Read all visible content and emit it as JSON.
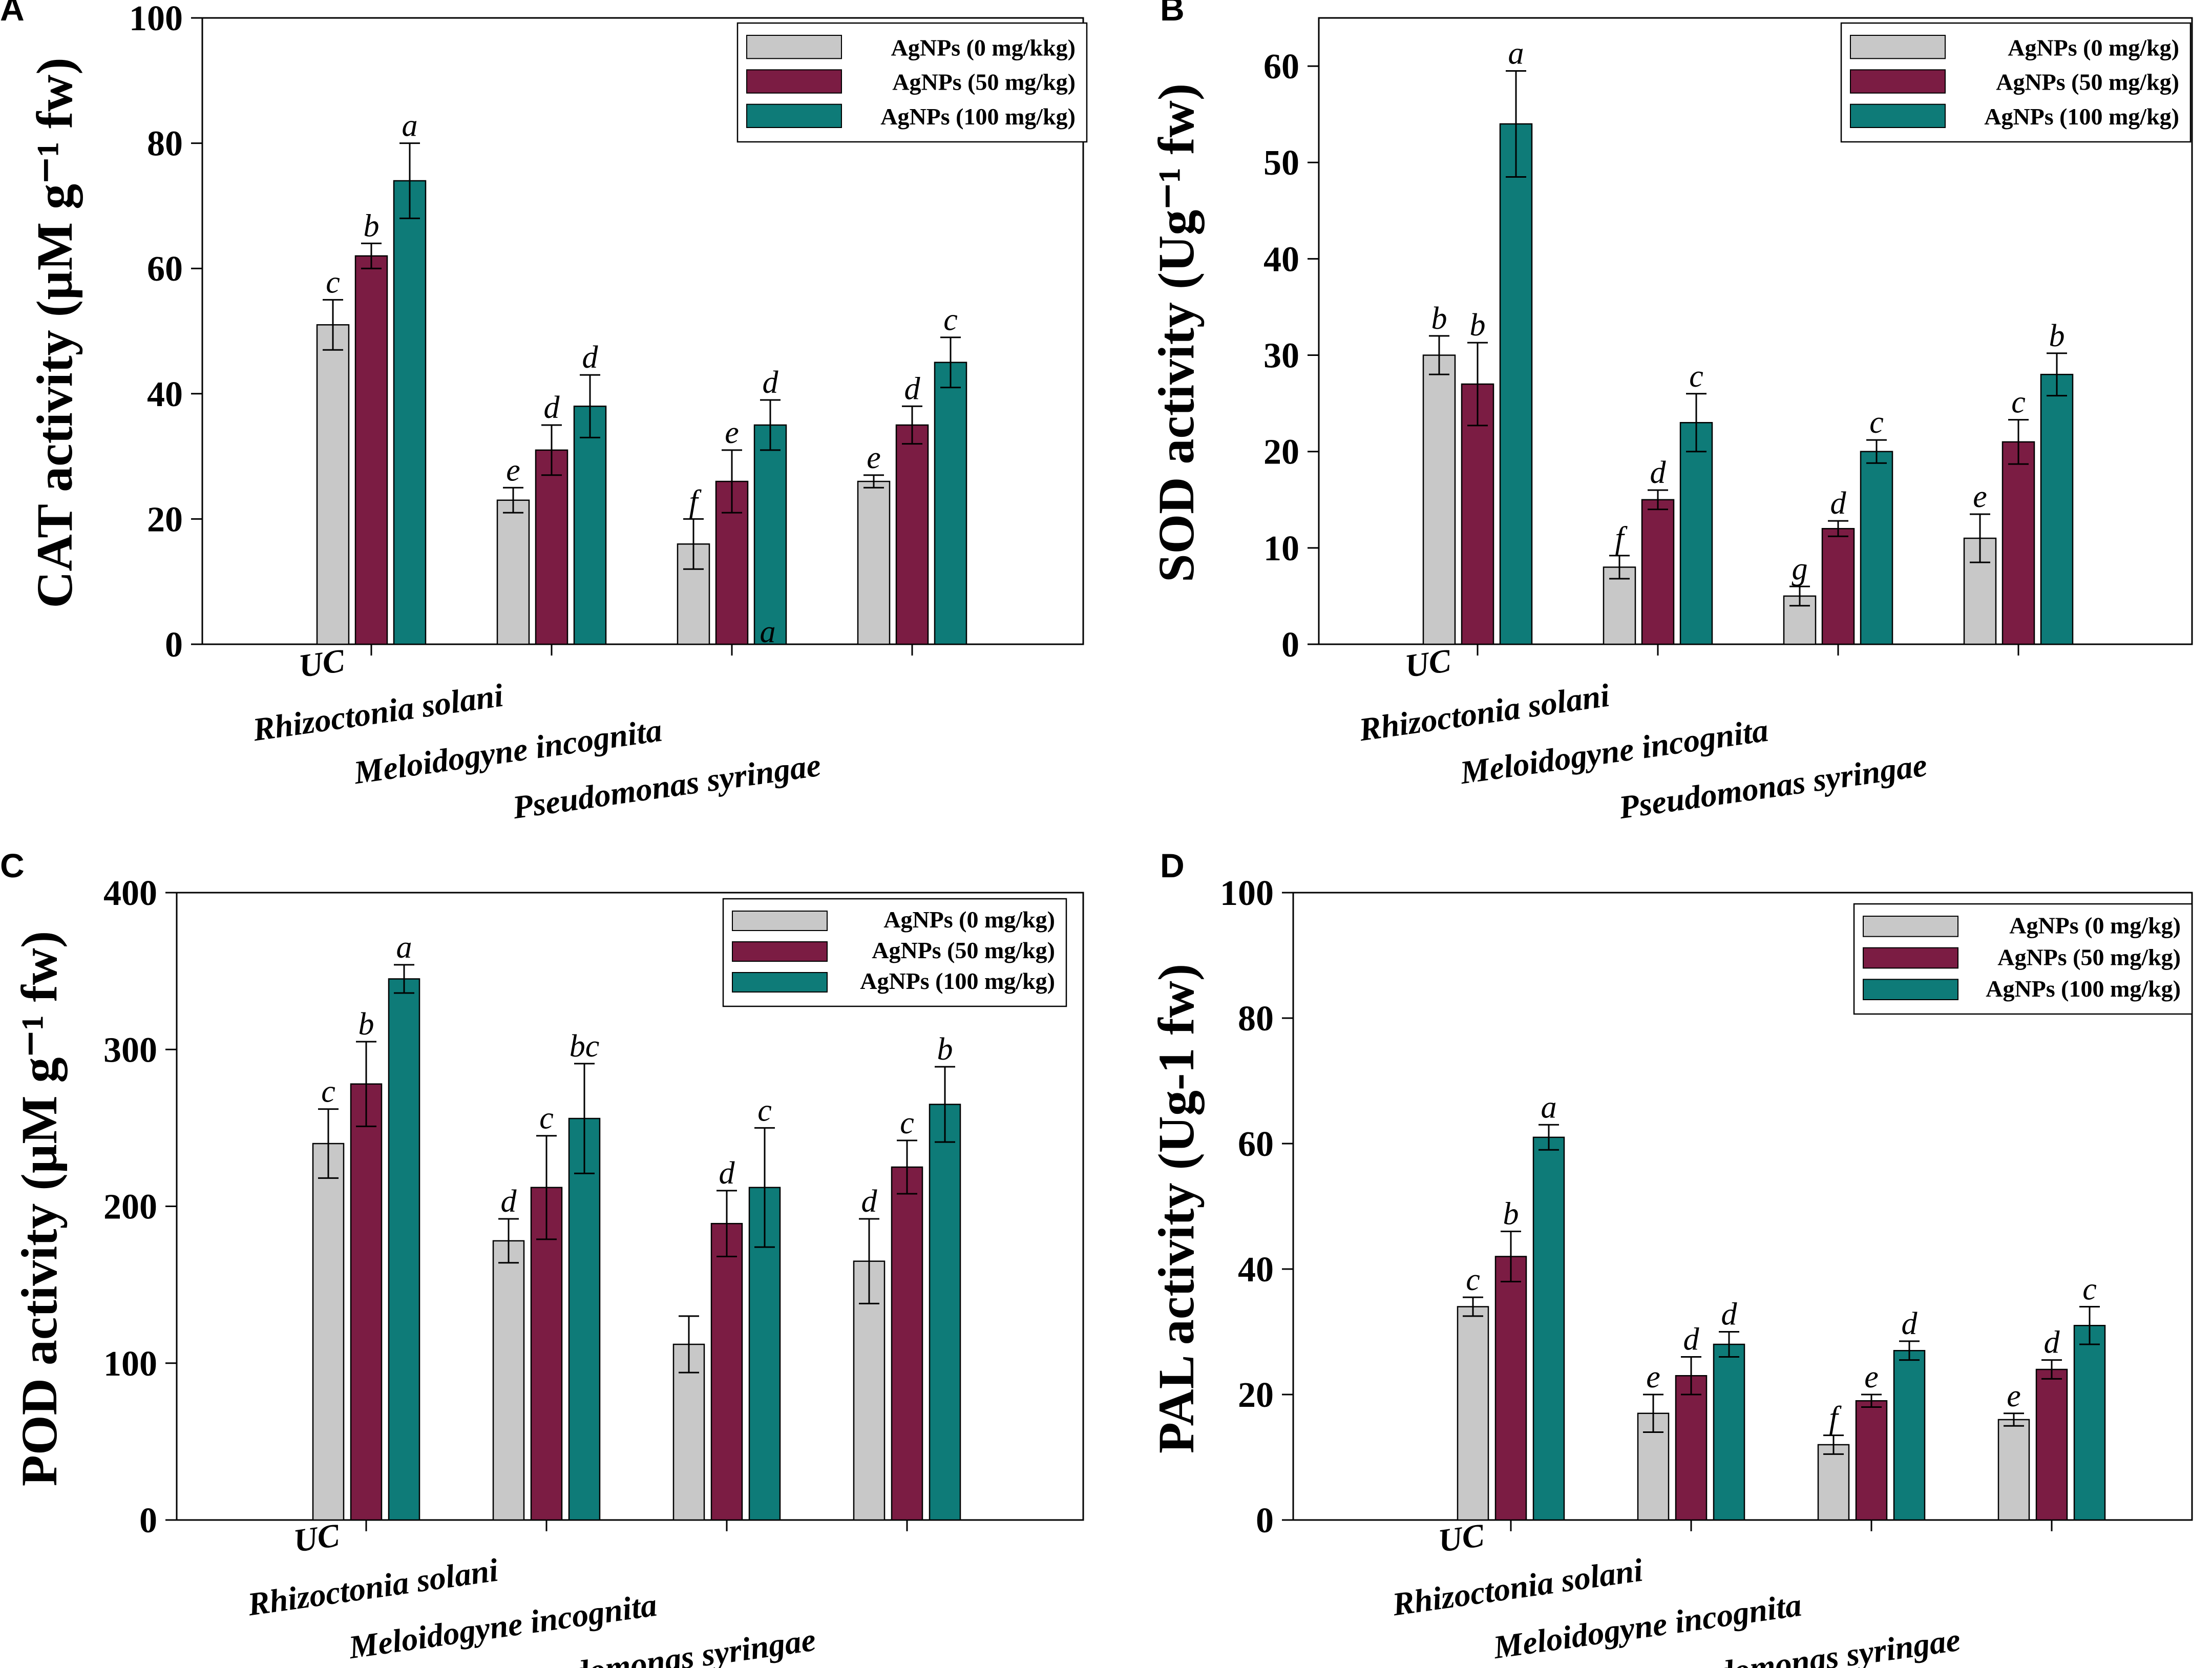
{
  "chart_data": [
    {
      "panel_label": "A",
      "type": "bar",
      "title": "",
      "xlabel": "",
      "ylabel": "CAT activity (µM g⁻¹ fw)",
      "ylim": [
        0,
        100
      ],
      "yticks": [
        0,
        20,
        40,
        60,
        80,
        100
      ],
      "categories": [
        "UC",
        "Rhizoctonia solani",
        "Meloidogyne incognita",
        "Pseudomonas syringae"
      ],
      "series": [
        {
          "name": "AgNPs (0 mg/kkg)",
          "color": "#c8c8c8",
          "values": [
            51,
            23,
            16,
            26
          ],
          "errors": [
            4,
            2,
            4,
            1
          ],
          "letters": [
            "c",
            "e",
            "f",
            "e"
          ]
        },
        {
          "name": "AgNPs (50 mg/kg)",
          "color": "#7b1c43",
          "values": [
            62,
            31,
            26,
            35
          ],
          "errors": [
            2,
            4,
            5,
            3
          ],
          "letters": [
            "b",
            "d",
            "e",
            "d"
          ]
        },
        {
          "name": "AgNPs (100 mg/kg)",
          "color": "#0e7b78",
          "values": [
            74,
            38,
            35,
            45
          ],
          "errors": [
            6,
            5,
            4,
            4
          ],
          "letters": [
            "a",
            "d",
            "d",
            "c"
          ]
        }
      ],
      "legend_position": "top-right",
      "annotations": [
        "a"
      ]
    },
    {
      "panel_label": "B",
      "type": "bar",
      "title": "",
      "xlabel": "",
      "ylabel": "SOD activity (Ug⁻¹ fw)",
      "ylim": [
        0,
        65
      ],
      "yticks": [
        0,
        10,
        20,
        30,
        40,
        50,
        60
      ],
      "categories": [
        "UC",
        "Rhizoctonia solani",
        "Meloidogyne incognita",
        "Pseudomonas syringae"
      ],
      "series": [
        {
          "name": "AgNPs (0 mg/kg)",
          "color": "#c8c8c8",
          "values": [
            30,
            8,
            5,
            11
          ],
          "errors": [
            2,
            1.2,
            1,
            2.5
          ],
          "letters": [
            "b",
            "f",
            "g",
            "e"
          ]
        },
        {
          "name": "AgNPs (50 mg/kg)",
          "color": "#7b1c43",
          "values": [
            27,
            15,
            12,
            21
          ],
          "errors": [
            4.3,
            1,
            0.8,
            2.3
          ],
          "letters": [
            "b",
            "d",
            "d",
            "c"
          ]
        },
        {
          "name": "AgNPs (100 mg/kg)",
          "color": "#0e7b78",
          "values": [
            54,
            23,
            20,
            28
          ],
          "errors": [
            5.5,
            3,
            1.2,
            2.2
          ],
          "letters": [
            "a",
            "c",
            "c",
            "b"
          ]
        }
      ],
      "legend_position": "top-right",
      "annotations": []
    },
    {
      "panel_label": "C",
      "type": "bar",
      "title": "",
      "xlabel": "",
      "ylabel": "POD activity (µM g⁻¹ fw)",
      "ylim": [
        0,
        400
      ],
      "yticks": [
        0,
        100,
        200,
        300,
        400
      ],
      "categories": [
        "UC",
        "Rhizoctonia solani",
        "Meloidogyne incognita",
        "Pseudomonas syringae"
      ],
      "series": [
        {
          "name": "AgNPs (0 mg/kg)",
          "color": "#c8c8c8",
          "values": [
            240,
            178,
            112,
            165
          ],
          "errors": [
            22,
            14,
            18,
            27
          ],
          "letters": [
            "c",
            "d",
            "",
            "d"
          ]
        },
        {
          "name": "AgNPs (50 mg/kg)",
          "color": "#7b1c43",
          "values": [
            278,
            212,
            189,
            225
          ],
          "errors": [
            27,
            33,
            21,
            17
          ],
          "letters": [
            "b",
            "c",
            "d",
            "c"
          ]
        },
        {
          "name": "AgNPs (100 mg/kg)",
          "color": "#0e7b78",
          "values": [
            345,
            256,
            212,
            265
          ],
          "errors": [
            9,
            35,
            38,
            24
          ],
          "letters": [
            "a",
            "bc",
            "c",
            "b"
          ]
        }
      ],
      "legend_position": "top-right",
      "annotations": []
    },
    {
      "panel_label": "D",
      "type": "bar",
      "title": "",
      "xlabel": "",
      "ylabel": "PAL activity (Ug-1 fw)",
      "ylim": [
        0,
        100
      ],
      "yticks": [
        0,
        20,
        40,
        60,
        80,
        100
      ],
      "categories": [
        "UC",
        "Rhizoctonia solani",
        "Meloidogyne incognita",
        "Pseudomonas syringae"
      ],
      "series": [
        {
          "name": "AgNPs (0 mg/kg)",
          "color": "#c8c8c8",
          "values": [
            34,
            17,
            12,
            16
          ],
          "errors": [
            1.5,
            3,
            1.5,
            1
          ],
          "letters": [
            "c",
            "e",
            "f",
            "e"
          ]
        },
        {
          "name": "AgNPs (50 mg/kg)",
          "color": "#7b1c43",
          "values": [
            42,
            23,
            19,
            24
          ],
          "errors": [
            4,
            3,
            1,
            1.5
          ],
          "letters": [
            "b",
            "d",
            "e",
            "d"
          ]
        },
        {
          "name": "AgNPs (100 mg/kg)",
          "color": "#0e7b78",
          "values": [
            61,
            28,
            27,
            31
          ],
          "errors": [
            2,
            2,
            1.5,
            3
          ],
          "letters": [
            "a",
            "d",
            "d",
            "c"
          ]
        }
      ],
      "legend_position": "top-right",
      "annotations": []
    }
  ]
}
